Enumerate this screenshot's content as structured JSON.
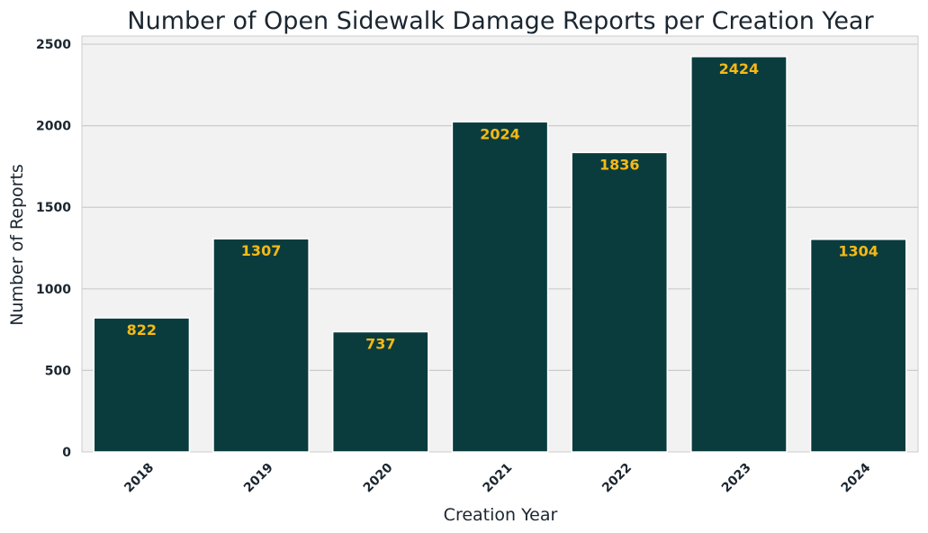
{
  "chart_data": {
    "type": "bar",
    "title": "Number of Open Sidewalk Damage Reports per Creation Year",
    "xlabel": "Creation Year",
    "ylabel": "Number of Reports",
    "categories": [
      "2018",
      "2019",
      "2020",
      "2021",
      "2022",
      "2023",
      "2024"
    ],
    "values": [
      822,
      1307,
      737,
      2024,
      1836,
      2424,
      1304
    ],
    "data_labels": [
      "822",
      "1307",
      "737",
      "2024",
      "1836",
      "2424",
      "1304"
    ],
    "ylim": [
      0,
      2550
    ],
    "yticks": [
      0,
      500,
      1000,
      1500,
      2000,
      2500
    ],
    "ytick_labels": [
      "0",
      "500",
      "1000",
      "1500",
      "2000",
      "2500"
    ],
    "grid": "horizontal",
    "colors": {
      "bar": "#0a3c3e",
      "bar_edge": "#ffffff",
      "data_label": "#f5b916",
      "plot_background": "#f2f2f2",
      "grid": "#cccccc",
      "text": "#1b2631"
    }
  }
}
